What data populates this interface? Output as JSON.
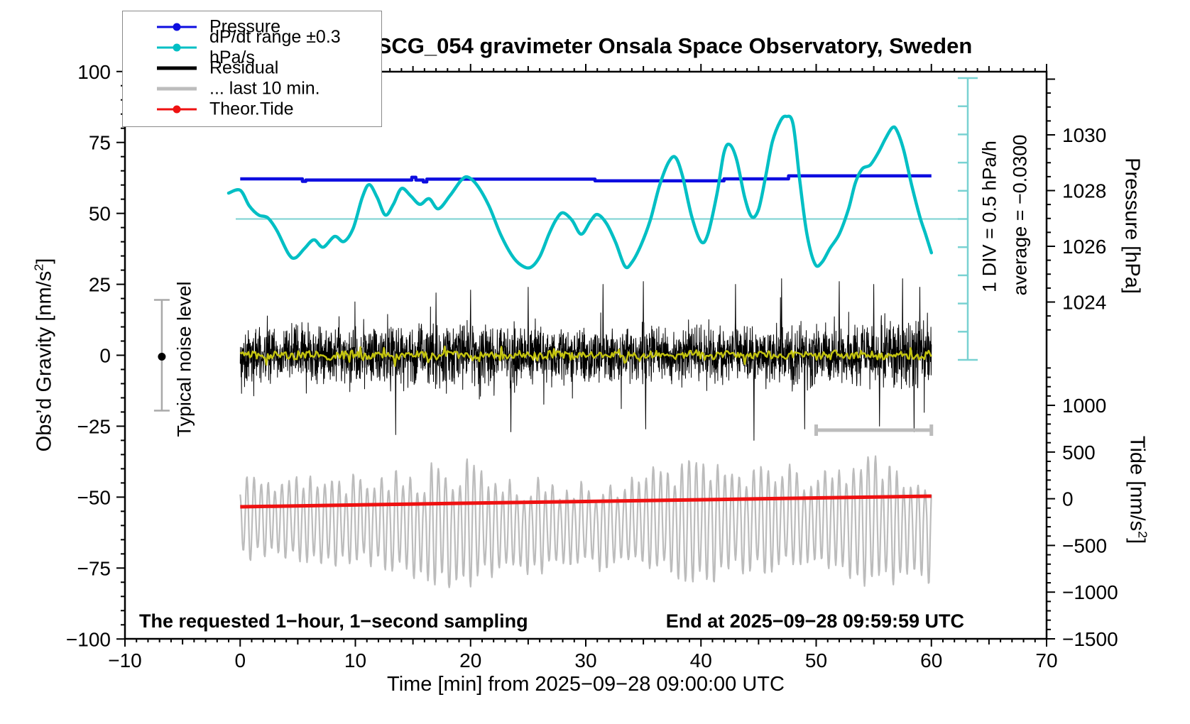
{
  "title": "SCG_054 gravimeter Onsala Space Observatory, Sweden",
  "annotations": {
    "sampling_note": "The requested 1−hour, 1−second sampling",
    "end_note": "End at 2025−09−28 09:59:59 UTC",
    "div_scale": "1 DIV = 0.5 hPa/h",
    "average": "average = −0.0300",
    "noise_level": "Typical noise level"
  },
  "legend": {
    "items": [
      {
        "label": "Pressure",
        "style": "thin-line-dot",
        "color": "#0d0de0"
      },
      {
        "label": "dP/dt range ±0.3 hPa/s",
        "style": "thin-line-dot",
        "color": "#00bfc4"
      },
      {
        "label": "Residual",
        "style": "thick-line",
        "color": "#000000"
      },
      {
        "label": "... last 10 min.",
        "style": "thick-line",
        "color": "#bcbcbc"
      },
      {
        "label": "Theor.Tide",
        "style": "thin-line-dot",
        "color": "#ee1111"
      }
    ]
  },
  "colors": {
    "pressure": "#0d0de0",
    "dpdt": "#00bfc4",
    "dpdt_thin": "#79d2d2",
    "residual": "#000000",
    "smoothed": "#c3c310",
    "last10": "#bcbcbc",
    "tide": "#ee1111",
    "noise_marker": "#a9a9a9",
    "frame": "#000000"
  },
  "chart_data": {
    "type": "line",
    "title": "SCG_054 gravimeter Onsala Space Observatory, Sweden",
    "xlabel": "Time [min] from 2025−09−28 09:00:00 UTC",
    "x_range": [
      -10,
      70
    ],
    "x_major_ticks": [
      -10,
      0,
      10,
      20,
      30,
      40,
      50,
      60,
      70
    ],
    "x_minor_step": 1,
    "x_medium_step": 5,
    "y_left": {
      "label": "Obs'd Gravity [nm/s²]",
      "range": [
        -100,
        100
      ],
      "major_step": 25,
      "minor_step": 5,
      "majors": [
        100,
        75,
        50,
        25,
        0,
        -25,
        -50,
        -75,
        -100
      ]
    },
    "y_right_pressure": {
      "label": "Pressure [hPa]",
      "majors": [
        1030,
        1028,
        1026,
        1024
      ],
      "minor_step": 0.5,
      "tick_span": [
        1023,
        1032
      ]
    },
    "y_right_tide": {
      "label": "Tide [nm/s²]",
      "majors": [
        1000,
        500,
        0,
        -500,
        -1000,
        -1500
      ],
      "minor_step": 100,
      "tick_span": [
        -1500,
        1400
      ]
    },
    "grid": false,
    "legend_position": "top-left",
    "series": [
      {
        "name": "Pressure",
        "unit": "hPa",
        "axis": "pressure",
        "points": [
          [
            0,
            1028.42
          ],
          [
            5.4,
            1028.42
          ],
          [
            5.4,
            1028.33
          ],
          [
            5.7,
            1028.33
          ],
          [
            5.7,
            1028.38
          ],
          [
            14.9,
            1028.38
          ],
          [
            14.9,
            1028.48
          ],
          [
            15.25,
            1028.48
          ],
          [
            15.25,
            1028.38
          ],
          [
            15.9,
            1028.38
          ],
          [
            15.9,
            1028.31
          ],
          [
            16.2,
            1028.31
          ],
          [
            16.2,
            1028.41
          ],
          [
            30.8,
            1028.41
          ],
          [
            30.8,
            1028.35
          ],
          [
            42,
            1028.35
          ],
          [
            42,
            1028.42
          ],
          [
            47.6,
            1028.42
          ],
          [
            47.6,
            1028.53
          ],
          [
            60,
            1028.53
          ]
        ]
      },
      {
        "name": "dP/dt",
        "unit": "hPa/h",
        "axis": "dpdt",
        "average": -0.03,
        "div_value": 0.5,
        "points": [
          [
            -1,
            0.43
          ],
          [
            0,
            0.48
          ],
          [
            0.8,
            0.2
          ],
          [
            1.6,
            0.04
          ],
          [
            2.4,
            -0.01
          ],
          [
            3.2,
            -0.24
          ],
          [
            4.2,
            -0.65
          ],
          [
            4.8,
            -0.72
          ],
          [
            5.6,
            -0.55
          ],
          [
            6.4,
            -0.4
          ],
          [
            7.2,
            -0.53
          ],
          [
            8.2,
            -0.34
          ],
          [
            9,
            -0.43
          ],
          [
            9.8,
            -0.2
          ],
          [
            10.6,
            0.35
          ],
          [
            11.2,
            0.58
          ],
          [
            11.9,
            0.35
          ],
          [
            12.6,
            0.04
          ],
          [
            13.3,
            0.23
          ],
          [
            14,
            0.51
          ],
          [
            14.8,
            0.38
          ],
          [
            15.6,
            0.23
          ],
          [
            16.4,
            0.33
          ],
          [
            17.2,
            0.15
          ],
          [
            18.2,
            0.38
          ],
          [
            19.2,
            0.66
          ],
          [
            19.8,
            0.71
          ],
          [
            20.6,
            0.56
          ],
          [
            21.6,
            0.2
          ],
          [
            22.6,
            -0.3
          ],
          [
            23.6,
            -0.68
          ],
          [
            24.4,
            -0.85
          ],
          [
            25.2,
            -0.89
          ],
          [
            26,
            -0.7
          ],
          [
            26.8,
            -0.3
          ],
          [
            27.4,
            -0.05
          ],
          [
            28,
            0.08
          ],
          [
            28.8,
            -0.05
          ],
          [
            29.6,
            -0.3
          ],
          [
            30.4,
            -0.07
          ],
          [
            31,
            0.05
          ],
          [
            31.8,
            -0.11
          ],
          [
            32.6,
            -0.45
          ],
          [
            33.4,
            -0.87
          ],
          [
            34,
            -0.8
          ],
          [
            34.8,
            -0.49
          ],
          [
            35.6,
            -0.05
          ],
          [
            36.4,
            0.56
          ],
          [
            37.2,
            0.98
          ],
          [
            37.8,
            1.06
          ],
          [
            38.4,
            0.73
          ],
          [
            39.2,
            0.01
          ],
          [
            40,
            -0.43
          ],
          [
            40.6,
            -0.3
          ],
          [
            41.4,
            0.43
          ],
          [
            42,
            1.15
          ],
          [
            42.5,
            1.29
          ],
          [
            43.1,
            1.02
          ],
          [
            43.8,
            0.35
          ],
          [
            44.4,
            0.01
          ],
          [
            45,
            0.14
          ],
          [
            45.6,
            0.71
          ],
          [
            46.2,
            1.34
          ],
          [
            46.9,
            1.71
          ],
          [
            47.4,
            1.79
          ],
          [
            48,
            1.65
          ],
          [
            48.6,
            0.61
          ],
          [
            49.2,
            -0.3
          ],
          [
            49.9,
            -0.83
          ],
          [
            50.5,
            -0.8
          ],
          [
            51.2,
            -0.55
          ],
          [
            52,
            -0.3
          ],
          [
            52.8,
            0.14
          ],
          [
            53.4,
            0.61
          ],
          [
            54,
            0.86
          ],
          [
            54.7,
            0.93
          ],
          [
            55.4,
            1.15
          ],
          [
            56,
            1.39
          ],
          [
            56.6,
            1.59
          ],
          [
            57,
            1.54
          ],
          [
            57.6,
            1.19
          ],
          [
            58.3,
            0.56
          ],
          [
            59,
            0.01
          ],
          [
            59.5,
            -0.3
          ],
          [
            60,
            -0.63
          ]
        ]
      },
      {
        "name": "Theor.Tide",
        "unit": "nm/s²",
        "axis": "tide",
        "points": [
          [
            0,
            -86
          ],
          [
            15,
            -57
          ],
          [
            30,
            -29
          ],
          [
            45,
            -1
          ],
          [
            60,
            28
          ]
        ]
      },
      {
        "name": "Residual",
        "unit": "nm/s²",
        "axis": "gravity",
        "generator": {
          "seed": 77,
          "per_min": 50,
          "sigma": 13,
          "spikes": [
            [
              13.5,
              -28
            ],
            [
              17,
              22
            ],
            [
              20,
              23
            ],
            [
              23.5,
              -27
            ],
            [
              25,
              24
            ],
            [
              31.5,
              25
            ],
            [
              35,
              26
            ],
            [
              35.2,
              -26
            ],
            [
              43,
              25
            ],
            [
              44.6,
              -30
            ],
            [
              47,
              27
            ],
            [
              49,
              -26
            ],
            [
              52,
              26
            ],
            [
              55,
              25
            ],
            [
              55.5,
              -25
            ],
            [
              57.5,
              27
            ],
            [
              58.5,
              -27
            ],
            [
              59,
              24
            ]
          ]
        }
      },
      {
        "name": "Smoothed residual",
        "unit": "nm/s²",
        "axis": "gravity",
        "generator": {
          "seed": 5,
          "amplitude": 2.6
        }
      },
      {
        "name": "... last 10 min.",
        "unit": "nm/s²",
        "axis": "tide",
        "generator": {
          "seed": 9,
          "period_min": 0.62,
          "base": -250,
          "base_wobble": 40,
          "amp_points": [
            [
              0,
              420
            ],
            [
              5,
              440
            ],
            [
              10,
              460
            ],
            [
              14,
              520
            ],
            [
              17,
              620
            ],
            [
              19.5,
              720
            ],
            [
              22,
              520
            ],
            [
              26,
              470
            ],
            [
              30,
              450
            ],
            [
              34,
              500
            ],
            [
              38,
              600
            ],
            [
              41,
              640
            ],
            [
              44,
              560
            ],
            [
              47,
              520
            ],
            [
              50,
              560
            ],
            [
              53,
              600
            ],
            [
              56,
              680
            ],
            [
              58,
              640
            ],
            [
              60,
              600
            ]
          ]
        }
      }
    ],
    "markers": {
      "noise_bar": {
        "time": -6.8,
        "gravity_center": 0,
        "gravity_halfspan": 19.5
      },
      "last10_bar": {
        "t0": 50,
        "t1": 60,
        "gravity": -26.4
      },
      "dpdt_scale_bar": {
        "divisions": 10,
        "div_hpa_per_h": 0.5,
        "center_value": -0.03
      }
    }
  }
}
